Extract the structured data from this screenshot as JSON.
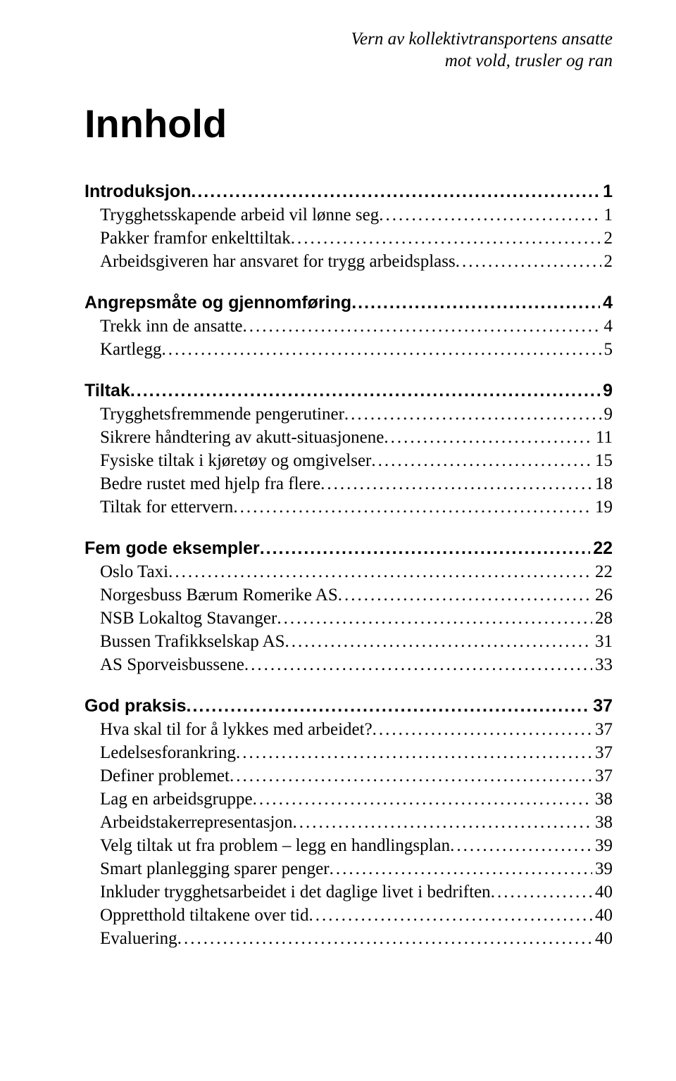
{
  "header": {
    "line1": "Vern av kollektivtransportens ansatte",
    "line2": "mot vold, trusler og ran"
  },
  "title": "Innhold",
  "sections": [
    {
      "heading": {
        "label": "Introduksjon",
        "page": "1"
      },
      "items": [
        {
          "label": "Trygghetsskapende arbeid vil lønne seg",
          "page": "1"
        },
        {
          "label": "Pakker framfor enkelttiltak",
          "page": "2"
        },
        {
          "label": "Arbeidsgiveren har ansvaret for trygg arbeidsplass",
          "page": "2"
        }
      ]
    },
    {
      "heading": {
        "label": "Angrepsmåte og gjennomføring",
        "page": "4"
      },
      "items": [
        {
          "label": "Trekk inn de ansatte",
          "page": "4"
        },
        {
          "label": "Kartlegg",
          "page": "5"
        }
      ]
    },
    {
      "heading": {
        "label": "Tiltak",
        "page": "9"
      },
      "items": [
        {
          "label": "Trygghetsfremmende pengerutiner",
          "page": "9"
        },
        {
          "label": "Sikrere håndtering av akutt-situasjonene",
          "page": "11"
        },
        {
          "label": "Fysiske tiltak i kjøretøy og omgivelser",
          "page": "15"
        },
        {
          "label": "Bedre rustet med hjelp fra flere",
          "page": "18"
        },
        {
          "label": "Tiltak for ettervern",
          "page": "19"
        }
      ]
    },
    {
      "heading": {
        "label": "Fem gode eksempler",
        "page": "22"
      },
      "items": [
        {
          "label": "Oslo Taxi",
          "page": "22"
        },
        {
          "label": "Norgesbuss Bærum Romerike AS",
          "page": "26"
        },
        {
          "label": "NSB Lokaltog Stavanger",
          "page": "28"
        },
        {
          "label": "Bussen Trafikkselskap AS",
          "page": "31"
        },
        {
          "label": "AS Sporveisbussene",
          "page": "33"
        }
      ]
    },
    {
      "heading": {
        "label": "God praksis",
        "page": "37"
      },
      "items": [
        {
          "label": "Hva skal til for å lykkes med arbeidet?",
          "page": "37"
        },
        {
          "label": "Ledelsesforankring",
          "page": "37"
        },
        {
          "label": "Definer problemet",
          "page": "37"
        },
        {
          "label": "Lag en arbeidsgruppe",
          "page": "38"
        },
        {
          "label": "Arbeidstakerrepresentasjon",
          "page": "38"
        },
        {
          "label": "Velg tiltak ut fra problem – legg en handlingsplan",
          "page": "39"
        },
        {
          "label": "Smart planlegging sparer penger",
          "page": "39"
        },
        {
          "label": "Inkluder trygghetsarbeidet i det daglige livet i bedriften",
          "page": "40"
        },
        {
          "label": "Oppretthold tiltakene over tid",
          "page": "40"
        },
        {
          "label": "Evaluering",
          "page": "40"
        }
      ]
    }
  ]
}
